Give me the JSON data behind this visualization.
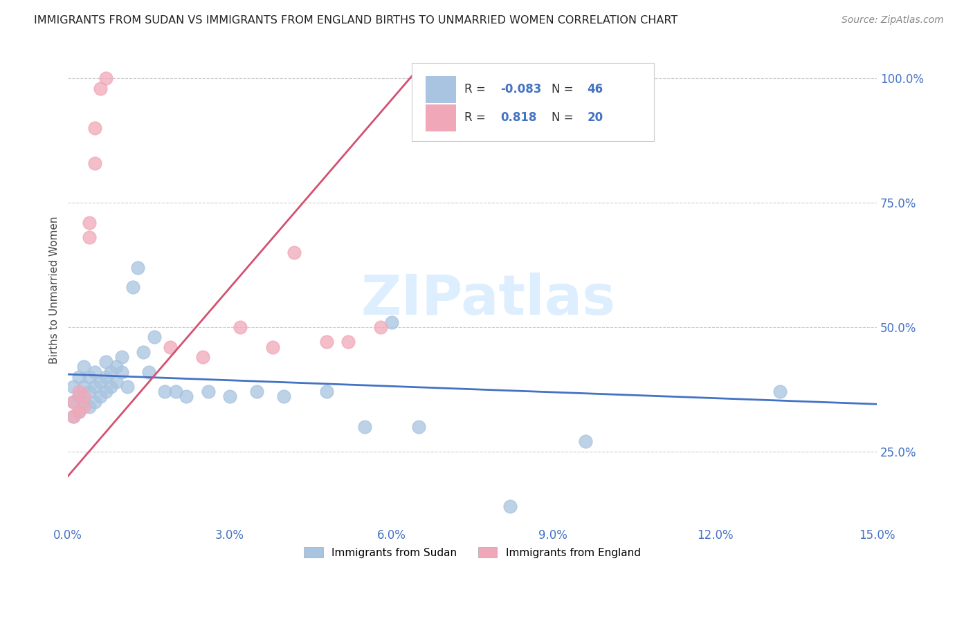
{
  "title": "IMMIGRANTS FROM SUDAN VS IMMIGRANTS FROM ENGLAND BIRTHS TO UNMARRIED WOMEN CORRELATION CHART",
  "source": "Source: ZipAtlas.com",
  "xlabel_sudan": "Immigrants from Sudan",
  "xlabel_england": "Immigrants from England",
  "ylabel": "Births to Unmarried Women",
  "xlim": [
    0.0,
    0.15
  ],
  "ylim": [
    0.1,
    1.05
  ],
  "xtick_positions": [
    0.0,
    0.03,
    0.06,
    0.09,
    0.12,
    0.15
  ],
  "xtick_labels": [
    "0.0%",
    "3.0%",
    "6.0%",
    "9.0%",
    "12.0%",
    "15.0%"
  ],
  "ytick_vals": [
    0.25,
    0.5,
    0.75,
    1.0
  ],
  "ytick_labels": [
    "25.0%",
    "50.0%",
    "75.0%",
    "100.0%"
  ],
  "R_sudan": -0.083,
  "N_sudan": 46,
  "R_england": 0.818,
  "N_england": 20,
  "color_sudan": "#a8c4e0",
  "color_england": "#f0a8b8",
  "line_color_sudan": "#4472c4",
  "line_color_england": "#d45070",
  "watermark": "ZIPatlas",
  "watermark_color": "#ddeeff",
  "sudan_x": [
    0.001,
    0.001,
    0.001,
    0.002,
    0.002,
    0.002,
    0.003,
    0.003,
    0.003,
    0.004,
    0.004,
    0.004,
    0.005,
    0.005,
    0.005,
    0.006,
    0.006,
    0.007,
    0.007,
    0.007,
    0.008,
    0.008,
    0.009,
    0.009,
    0.01,
    0.01,
    0.011,
    0.012,
    0.013,
    0.014,
    0.015,
    0.016,
    0.018,
    0.02,
    0.022,
    0.026,
    0.03,
    0.035,
    0.04,
    0.048,
    0.055,
    0.06,
    0.065,
    0.082,
    0.096,
    0.132
  ],
  "sudan_y": [
    0.38,
    0.35,
    0.32,
    0.4,
    0.36,
    0.33,
    0.42,
    0.38,
    0.35,
    0.4,
    0.37,
    0.34,
    0.41,
    0.38,
    0.35,
    0.39,
    0.36,
    0.43,
    0.4,
    0.37,
    0.41,
    0.38,
    0.42,
    0.39,
    0.44,
    0.41,
    0.38,
    0.58,
    0.62,
    0.45,
    0.41,
    0.48,
    0.37,
    0.37,
    0.36,
    0.37,
    0.36,
    0.37,
    0.36,
    0.37,
    0.3,
    0.51,
    0.3,
    0.14,
    0.27,
    0.37
  ],
  "england_x": [
    0.001,
    0.001,
    0.002,
    0.002,
    0.003,
    0.003,
    0.004,
    0.004,
    0.005,
    0.005,
    0.006,
    0.007,
    0.019,
    0.025,
    0.032,
    0.038,
    0.042,
    0.048,
    0.052,
    0.058
  ],
  "england_y": [
    0.35,
    0.32,
    0.37,
    0.33,
    0.36,
    0.34,
    0.71,
    0.68,
    0.83,
    0.9,
    0.98,
    1.0,
    0.46,
    0.44,
    0.5,
    0.46,
    0.65,
    0.47,
    0.47,
    0.5
  ]
}
